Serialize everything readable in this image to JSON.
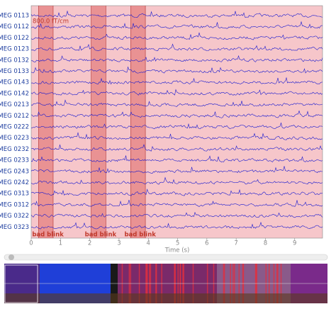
{
  "plot": {
    "channels": [
      "MEG 0113",
      "MEG 0112",
      "MEG 0122",
      "MEG 0123",
      "MEG 0132",
      "MEG 0133",
      "MEG 0143",
      "MEG 0142",
      "MEG 0213",
      "MEG 0212",
      "MEG 0222",
      "MEG 0223",
      "MEG 0232",
      "MEG 0233",
      "MEG 0243",
      "MEG 0242",
      "MEG 0313",
      "MEG 0312",
      "MEG 0322",
      "MEG 0323"
    ],
    "scale_label": "800.0 fT/cm",
    "xlabel": "Time (s)",
    "xlim": [
      0,
      9.95
    ],
    "xticks": [
      0,
      1,
      2,
      3,
      4,
      5,
      6,
      7,
      8,
      9
    ],
    "annotations": [
      {
        "label": "bad blink",
        "onset": 0.25,
        "end": 0.75
      },
      {
        "label": "bad blink",
        "onset": 2.05,
        "end": 2.55
      },
      {
        "label": "bad blink",
        "onset": 3.4,
        "end": 3.9
      }
    ]
  }
}
